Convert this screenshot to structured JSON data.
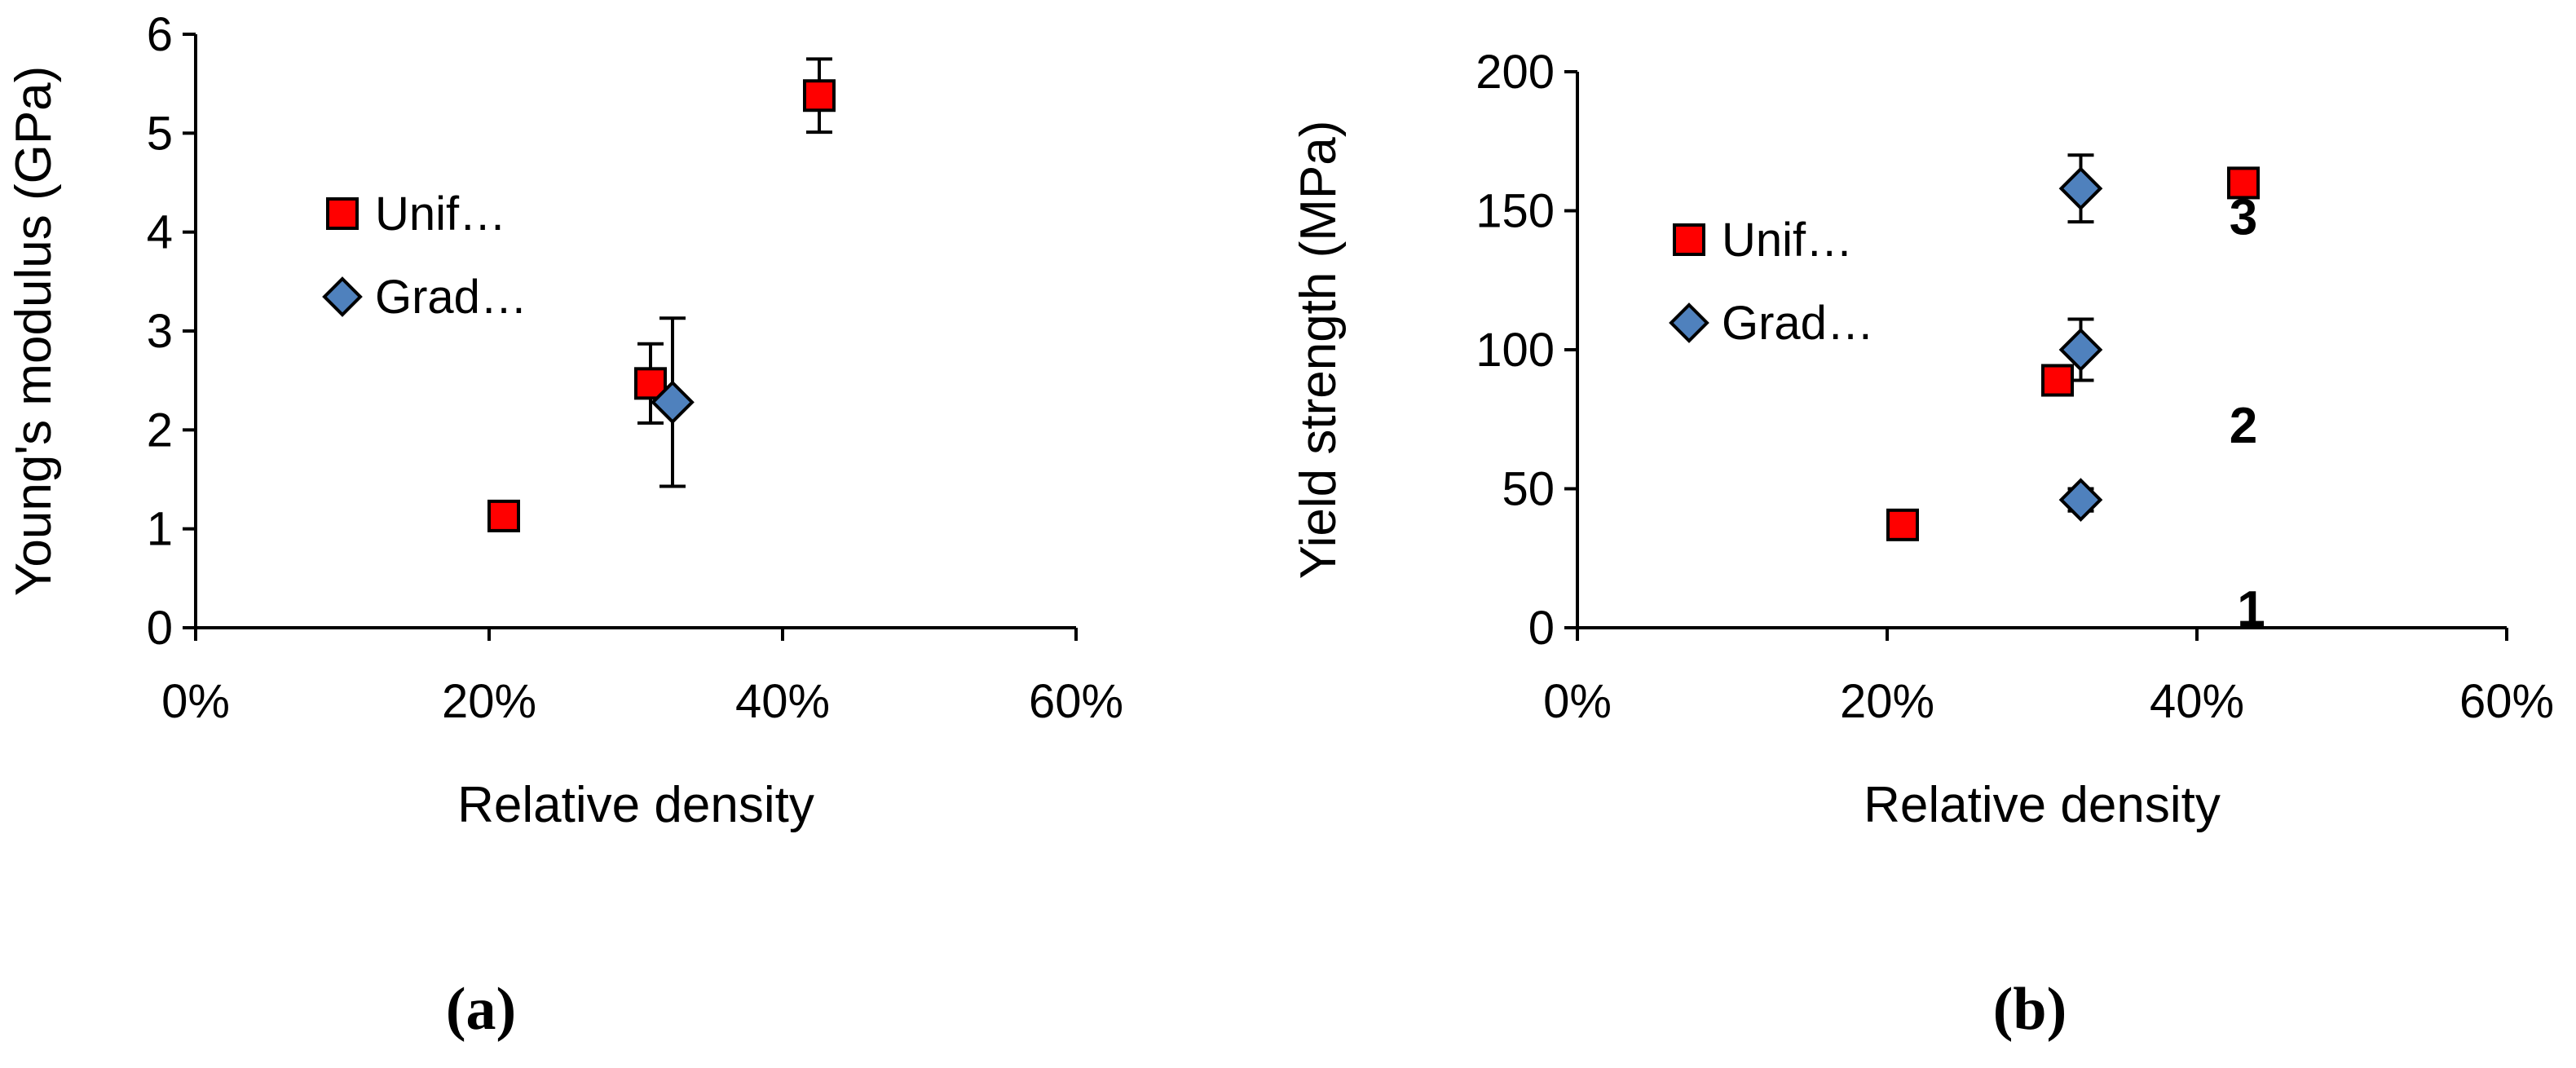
{
  "chart_data": [
    {
      "panel_label": "(a)",
      "type": "scatter",
      "xlabel": "Relative density",
      "ylabel": "Young's modulus (GPa)",
      "xlim": [
        0,
        0.6
      ],
      "ylim": [
        0,
        6
      ],
      "x_ticks": [
        "0%",
        "20%",
        "40%",
        "60%"
      ],
      "y_ticks": [
        "0",
        "1",
        "2",
        "3",
        "4",
        "5",
        "6"
      ],
      "grid": false,
      "legend_position": "upper-left",
      "series": [
        {
          "name": "Unif…",
          "marker": "square",
          "color": "#ff0000",
          "points": [
            {
              "x": 0.21,
              "y": 1.13,
              "err": null
            },
            {
              "x": 0.31,
              "y": 2.47,
              "err": 0.4
            },
            {
              "x": 0.425,
              "y": 5.38,
              "err": 0.37
            }
          ]
        },
        {
          "name": "Grad…",
          "marker": "diamond",
          "color": "#4f81bd",
          "points": [
            {
              "x": 0.325,
              "y": 2.28,
              "err": 0.85
            }
          ]
        }
      ],
      "annotations": []
    },
    {
      "panel_label": "(b)",
      "type": "scatter",
      "xlabel": "Relative density",
      "ylabel": "Yield strength (MPa)",
      "xlim": [
        0,
        0.6
      ],
      "ylim": [
        0,
        200
      ],
      "x_ticks": [
        "0%",
        "20%",
        "40%",
        "60%"
      ],
      "y_ticks": [
        "0",
        "50",
        "100",
        "150",
        "200"
      ],
      "grid": false,
      "legend_position": "upper-left",
      "series": [
        {
          "name": "Unif…",
          "marker": "square",
          "color": "#ff0000",
          "points": [
            {
              "x": 0.21,
              "y": 37,
              "err": null
            },
            {
              "x": 0.31,
              "y": 89,
              "err": null
            },
            {
              "x": 0.43,
              "y": 160,
              "err": null
            }
          ]
        },
        {
          "name": "Grad…",
          "marker": "diamond",
          "color": "#4f81bd",
          "points": [
            {
              "x": 0.325,
              "y": 46,
              "err": 4
            },
            {
              "x": 0.325,
              "y": 100,
              "err": 11
            },
            {
              "x": 0.325,
              "y": 158,
              "err": 12
            }
          ]
        }
      ],
      "annotations": [
        {
          "text": "3",
          "x": 0.43,
          "y": 148
        },
        {
          "text": "2",
          "x": 0.43,
          "y": 73
        },
        {
          "text": "1",
          "x": 0.435,
          "y": 7
        }
      ]
    }
  ],
  "colors": {
    "axis": "#000000",
    "marker_outline": "#000000",
    "background": "#ffffff"
  }
}
